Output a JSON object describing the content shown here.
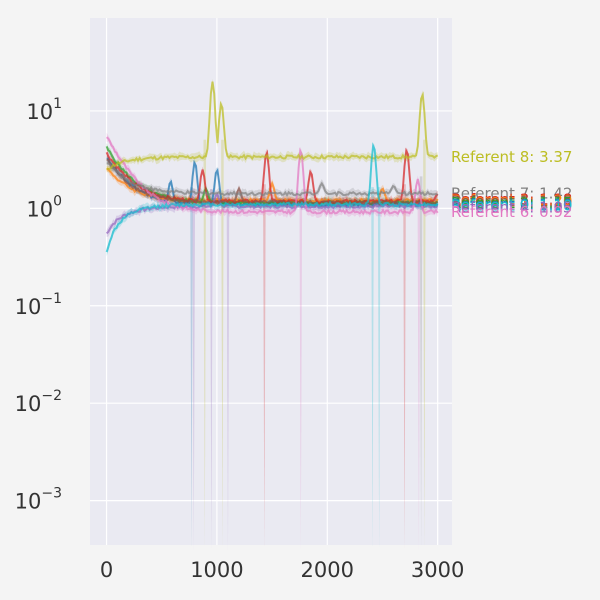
{
  "chart_data": {
    "type": "line",
    "title": "",
    "xlabel": "",
    "ylabel": "",
    "xlim": [
      -150,
      3130
    ],
    "ylim": [
      0.00035,
      90
    ],
    "yscale": "log",
    "grid": true,
    "legend": "none",
    "x_ticks": [
      {
        "value": 0,
        "label": "0"
      },
      {
        "value": 1000,
        "label": "1000"
      },
      {
        "value": 2000,
        "label": "2000"
      },
      {
        "value": 3000,
        "label": "3000"
      }
    ],
    "y_ticks": [
      {
        "value": 0.001,
        "base": "10",
        "exp": "−3"
      },
      {
        "value": 0.01,
        "base": "10",
        "exp": "−2"
      },
      {
        "value": 0.1,
        "base": "10",
        "exp": "−1"
      },
      {
        "value": 1,
        "base": "10",
        "exp": "0"
      },
      {
        "value": 10,
        "base": "10",
        "exp": "1"
      }
    ],
    "series": [
      {
        "color": "#1f77b4",
        "start": 3.3,
        "end": 1.1,
        "spikes": [
          [
            580,
            1.9
          ],
          [
            800,
            3.0
          ],
          [
            1000,
            2.5
          ]
        ],
        "dips": [
          [
            770,
            1e-06
          ]
        ]
      },
      {
        "color": "#ff7f0e",
        "start": 2.6,
        "end": 1.2,
        "spikes": [
          [
            1500,
            1.8
          ],
          [
            2500,
            1.6
          ]
        ],
        "dips": []
      },
      {
        "color": "#2ca02c",
        "start": 4.2,
        "end": 1.15,
        "spikes": [
          [
            900,
            1.6
          ]
        ],
        "dips": []
      },
      {
        "color": "#d62728",
        "start": 3.7,
        "end": 1.18,
        "spikes": [
          [
            870,
            2.5
          ],
          [
            1450,
            3.8
          ],
          [
            1850,
            2.4
          ],
          [
            2720,
            4.0
          ],
          [
            3000,
            1.4
          ]
        ],
        "dips": [
          [
            1430,
            1e-06
          ],
          [
            2700,
            1e-06
          ]
        ]
      },
      {
        "color": "#9467bd",
        "start": 0.55,
        "end": 1.05,
        "spikes": [
          [
            1000,
            1.4
          ]
        ],
        "dips": [
          [
            790,
            1e-06
          ],
          [
            950,
            1e-06
          ],
          [
            1100,
            1e-06
          ]
        ]
      },
      {
        "color": "#8c564b",
        "start": 3.2,
        "end": 1.15,
        "spikes": [
          [
            1200,
            1.6
          ]
        ],
        "dips": []
      },
      {
        "color": "#e377c2",
        "start": 5.5,
        "end": 0.92,
        "spikes": [
          [
            1760,
            4.0
          ],
          [
            2820,
            2.0
          ]
        ],
        "dips": [
          [
            1760,
            1e-06
          ],
          [
            2830,
            1e-06
          ]
        ]
      },
      {
        "color": "#7f7f7f",
        "start": 3.0,
        "end": 1.42,
        "spikes": [
          [
            1950,
            1.8
          ],
          [
            2600,
            1.7
          ]
        ],
        "dips": [
          [
            2850,
            1e-06
          ]
        ]
      },
      {
        "color": "#bcbd22",
        "start": 2.5,
        "end": 3.37,
        "spikes": [
          [
            960,
            20
          ],
          [
            1040,
            12
          ],
          [
            2860,
            15
          ]
        ],
        "dips": [
          [
            890,
            1e-06
          ],
          [
            1050,
            1e-06
          ],
          [
            2880,
            1e-06
          ]
        ]
      },
      {
        "color": "#17becf",
        "start": 0.35,
        "end": 1.1,
        "spikes": [
          [
            2420,
            4.5
          ]
        ],
        "dips": [
          [
            2410,
            1e-06
          ],
          [
            2470,
            1e-06
          ]
        ]
      }
    ],
    "annotations": [
      {
        "text": "Referent 8: 3.37",
        "color": "#bcbd22",
        "y": 3.37
      },
      {
        "text": "Referent 7: 1.42",
        "color": "#7f7f7f",
        "y": 1.42
      },
      {
        "text": "Referent 3: 1.18",
        "color": "#d62728",
        "y": 1.24
      },
      {
        "text": "Referent 1: 1.20",
        "color": "#ff7f0e",
        "y": 1.2
      },
      {
        "text": "Referent 5: 1.15",
        "color": "#8c564b",
        "y": 1.17
      },
      {
        "text": "Referent 2: 1.15",
        "color": "#2ca02c",
        "y": 1.14
      },
      {
        "text": "Referent 0: 1.10",
        "color": "#1f77b4",
        "y": 1.1
      },
      {
        "text": "Referent 9: 1.10",
        "color": "#17becf",
        "y": 1.07
      },
      {
        "text": "Referent 4: 1.05",
        "color": "#9467bd",
        "y": 1.02
      },
      {
        "text": "Referent 6: 0.92",
        "color": "#e377c2",
        "y": 0.92
      }
    ]
  }
}
